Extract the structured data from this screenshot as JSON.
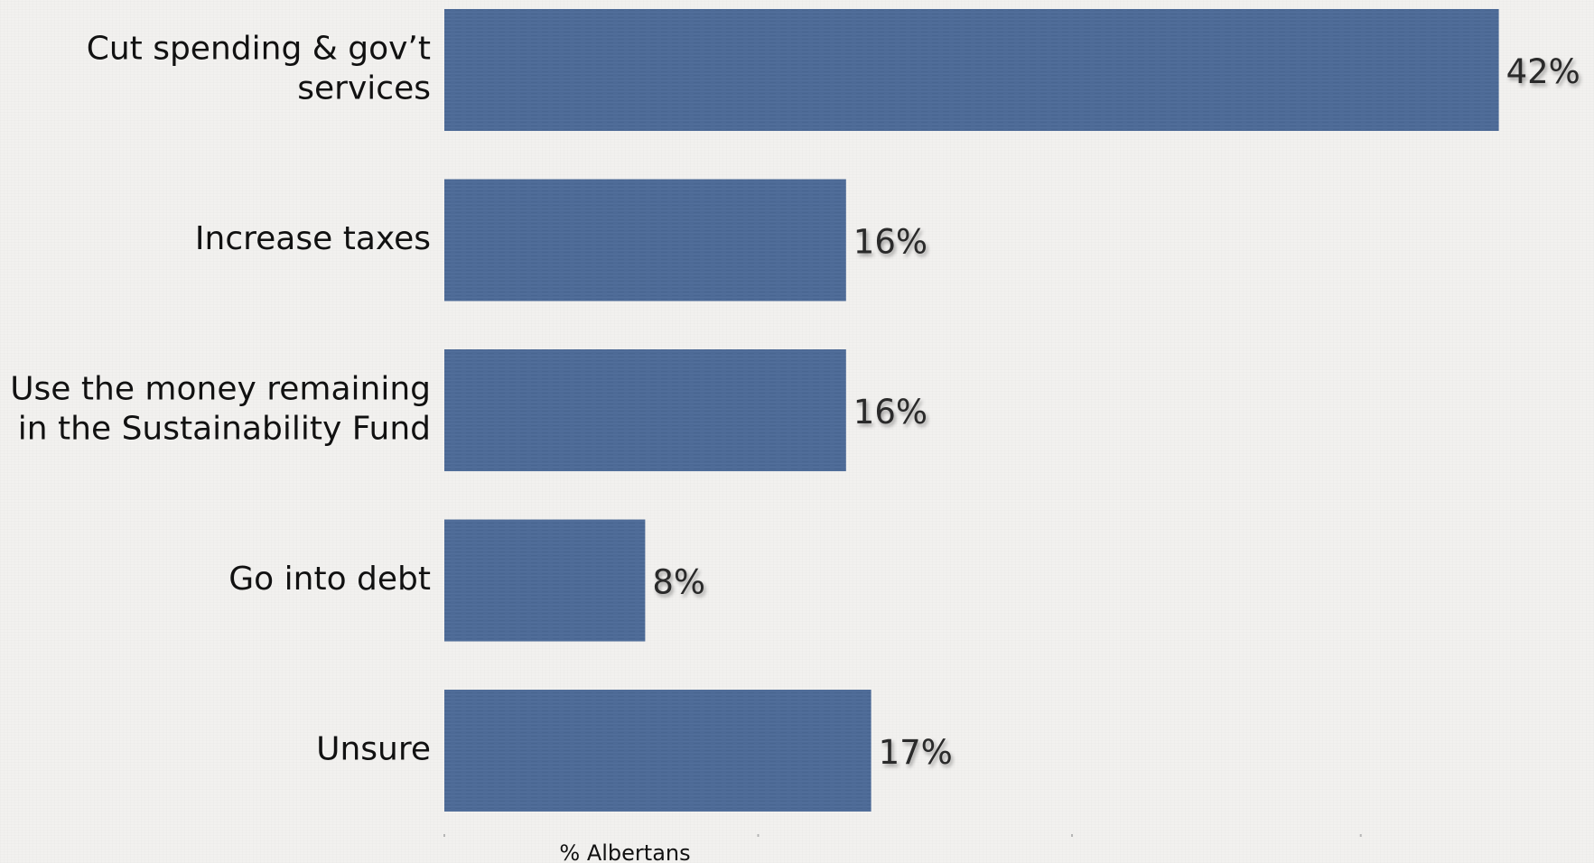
{
  "chart_data": {
    "type": "bar",
    "orientation": "horizontal",
    "categories": [
      [
        "Cut spending & gov’t",
        "services"
      ],
      [
        "Increase taxes"
      ],
      [
        "Use the money remaining",
        "in the Sustainability Fund"
      ],
      [
        "Go into debt"
      ],
      [
        "Unsure"
      ]
    ],
    "values": [
      42,
      16,
      16,
      8,
      17
    ],
    "value_labels": [
      "42%",
      "16%",
      "16%",
      "8%",
      "17%"
    ],
    "xlabel": "% Albertans",
    "ylabel": "",
    "title": "",
    "xlim": [
      0,
      45
    ],
    "grid": false,
    "legend": "none",
    "colors": {
      "bar": "#4d6a96",
      "bar_line": "#587aa8",
      "label": "#111111",
      "value_label": "#2b2b2b"
    }
  }
}
